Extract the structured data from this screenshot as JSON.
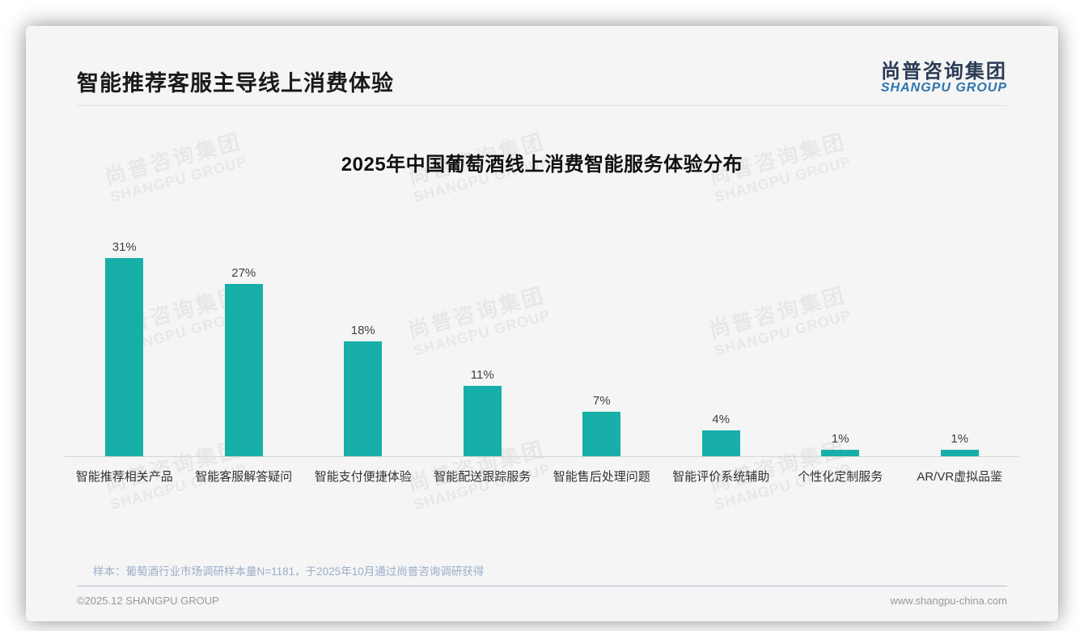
{
  "page": {
    "header_title": "智能推荐客服主导线上消费体验",
    "logo": {
      "cn": "尚普咨询集团",
      "en": "SHANGPU GROUP"
    }
  },
  "watermark": {
    "line1": "尚普咨询集团",
    "line2": "SHANGPU GROUP"
  },
  "chart_data": {
    "type": "bar",
    "title": "2025年中国葡萄酒线上消费智能服务体验分布",
    "categories": [
      "智能推荐相关产品",
      "智能客服解答疑问",
      "智能支付便捷体验",
      "智能配送跟踪服务",
      "智能售后处理问题",
      "智能评价系统辅助",
      "个性化定制服务",
      "AR/VR虚拟品鉴"
    ],
    "values": [
      31,
      27,
      18,
      11,
      7,
      4,
      1,
      1
    ],
    "value_labels": [
      "31%",
      "27%",
      "18%",
      "11%",
      "7%",
      "4%",
      "1%",
      "1%"
    ],
    "xlabel": "",
    "ylabel": "",
    "ylim": [
      0,
      35
    ],
    "grid": false,
    "legend": false,
    "bar_color": "#17AFA8"
  },
  "footer": {
    "sample_note": "样本：葡萄酒行业市场调研样本量N=1181，于2025年10月通过尚普咨询调研获得",
    "copyright": "©2025.12 SHANGPU GROUP",
    "website": "www.shangpu-china.com"
  },
  "colors": {
    "bar": "#17AFA8",
    "logo_cn": "#2B3B55",
    "logo_en": "#2E74AE",
    "note_text": "#9AAEC8"
  }
}
